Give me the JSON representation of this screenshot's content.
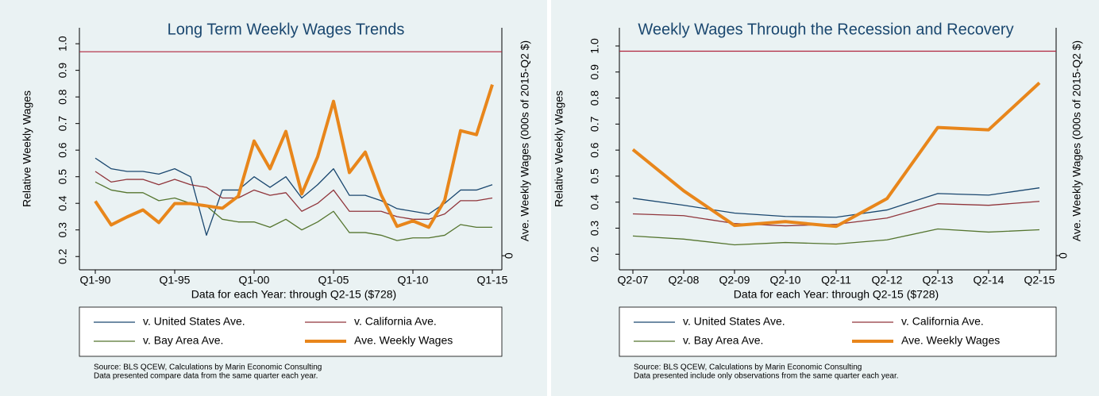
{
  "chart_data": [
    {
      "type": "line",
      "title": "Long Term Weekly Wages Trends",
      "xlabel": "Data for each Year: through Q2-15 ($728)",
      "ylabel": "Relative Weekly Wages",
      "y2label": "Ave. Weekly Wages (000s of 2015-Q2 $)",
      "categories": [
        "Q1-90",
        null,
        null,
        null,
        null,
        "Q1-95",
        null,
        null,
        null,
        null,
        "Q1-00",
        null,
        null,
        null,
        null,
        "Q1-05",
        null,
        null,
        null,
        null,
        "Q1-10",
        null,
        null,
        null,
        null,
        "Q1-15"
      ],
      "ylim": [
        0.15,
        1.06
      ],
      "yticks": [
        0.2,
        0.3,
        0.4,
        0.5,
        0.6,
        0.7,
        0.8,
        0.9,
        {
          "value": 1,
          "label": "1.0"
        }
      ],
      "y2lim": [
        -0.06,
        0.97
      ],
      "y2ticks": [
        0
      ],
      "reference_line": {
        "value": 0.97,
        "color": "#b0243c"
      },
      "series": [
        {
          "name": "v. United States Ave.",
          "color": "#1a476f",
          "values": [
            0.57,
            0.53,
            0.52,
            0.52,
            0.51,
            0.53,
            0.5,
            0.28,
            0.45,
            0.45,
            0.5,
            0.46,
            0.5,
            0.42,
            0.47,
            0.53,
            0.43,
            0.43,
            0.41,
            0.38,
            0.37,
            0.36,
            0.4,
            0.45,
            0.45,
            0.47
          ]
        },
        {
          "name": "v. California Ave.",
          "color": "#90353b",
          "values": [
            0.52,
            0.48,
            0.49,
            0.49,
            0.47,
            0.49,
            0.47,
            0.46,
            0.42,
            0.42,
            0.45,
            0.43,
            0.44,
            0.37,
            0.4,
            0.45,
            0.37,
            0.37,
            0.37,
            0.35,
            0.34,
            0.34,
            0.36,
            0.41,
            0.41,
            0.42
          ]
        },
        {
          "name": "v. Bay Area Ave.",
          "color": "#55752f",
          "values": [
            0.48,
            0.45,
            0.44,
            0.44,
            0.41,
            0.42,
            0.4,
            0.39,
            0.34,
            0.33,
            0.33,
            0.31,
            0.34,
            0.3,
            0.33,
            0.37,
            0.29,
            0.29,
            0.28,
            0.26,
            0.27,
            0.27,
            0.28,
            0.32,
            0.31,
            0.31
          ]
        },
        {
          "name": "Ave. Weekly Wages",
          "color": "#e8861b",
          "axis": "y2",
          "values": [
            0.232,
            0.131,
            0.165,
            0.195,
            0.141,
            0.222,
            0.222,
            0.212,
            0.202,
            0.253,
            0.488,
            0.37,
            0.529,
            0.263,
            0.421,
            0.657,
            0.354,
            0.441,
            0.259,
            0.125,
            0.148,
            0.121,
            0.236,
            0.532,
            0.515,
            0.728
          ]
        }
      ],
      "notes": [
        "Source: BLS QCEW, Calculations by Marin Economic Consulting",
        "Data presented compare data from the same quarter each year."
      ]
    },
    {
      "type": "line",
      "title": "Weekly Wages Through the Recession and Recovery",
      "xlabel": "Data for each Year: through Q2-15 ($728)",
      "ylabel": "Relative Weekly Wages",
      "y2label": "Ave. Weekly Wages (000s of 2015-Q2 $)",
      "categories": [
        "Q2-07",
        "Q2-08",
        "Q2-09",
        "Q2-10",
        "Q2-11",
        "Q2-12",
        "Q2-13",
        "Q2-14",
        "Q2-15"
      ],
      "ylim": [
        0.14,
        1.07
      ],
      "yticks": [
        0.2,
        0.3,
        0.4,
        0.5,
        0.6,
        0.7,
        0.8,
        0.9,
        {
          "value": 1,
          "label": "1.0"
        }
      ],
      "y2lim": [
        -0.06,
        0.96
      ],
      "y2ticks": [
        0
      ],
      "reference_line": {
        "value": 0.98,
        "color": "#b0243c"
      },
      "series": [
        {
          "name": "v. United States Ave.",
          "color": "#1a476f",
          "values": [
            0.415,
            0.388,
            0.358,
            0.345,
            0.342,
            0.37,
            0.433,
            0.427,
            0.455
          ]
        },
        {
          "name": "v. California Ave.",
          "color": "#90353b",
          "values": [
            0.355,
            0.348,
            0.318,
            0.309,
            0.315,
            0.339,
            0.394,
            0.388,
            0.403
          ]
        },
        {
          "name": "v. Bay Area Ave.",
          "color": "#55752f",
          "values": [
            0.27,
            0.258,
            0.236,
            0.245,
            0.239,
            0.255,
            0.297,
            0.285,
            0.294
          ]
        },
        {
          "name": "Ave. Weekly Wages",
          "color": "#e8861b",
          "axis": "y2",
          "values": [
            0.447,
            0.273,
            0.127,
            0.143,
            0.123,
            0.24,
            0.54,
            0.53,
            0.728
          ]
        }
      ],
      "notes": [
        "Source: BLS QCEW, Calculations by Marin Economic Consulting",
        "Data presented include only observations from the same quarter each year."
      ]
    }
  ]
}
